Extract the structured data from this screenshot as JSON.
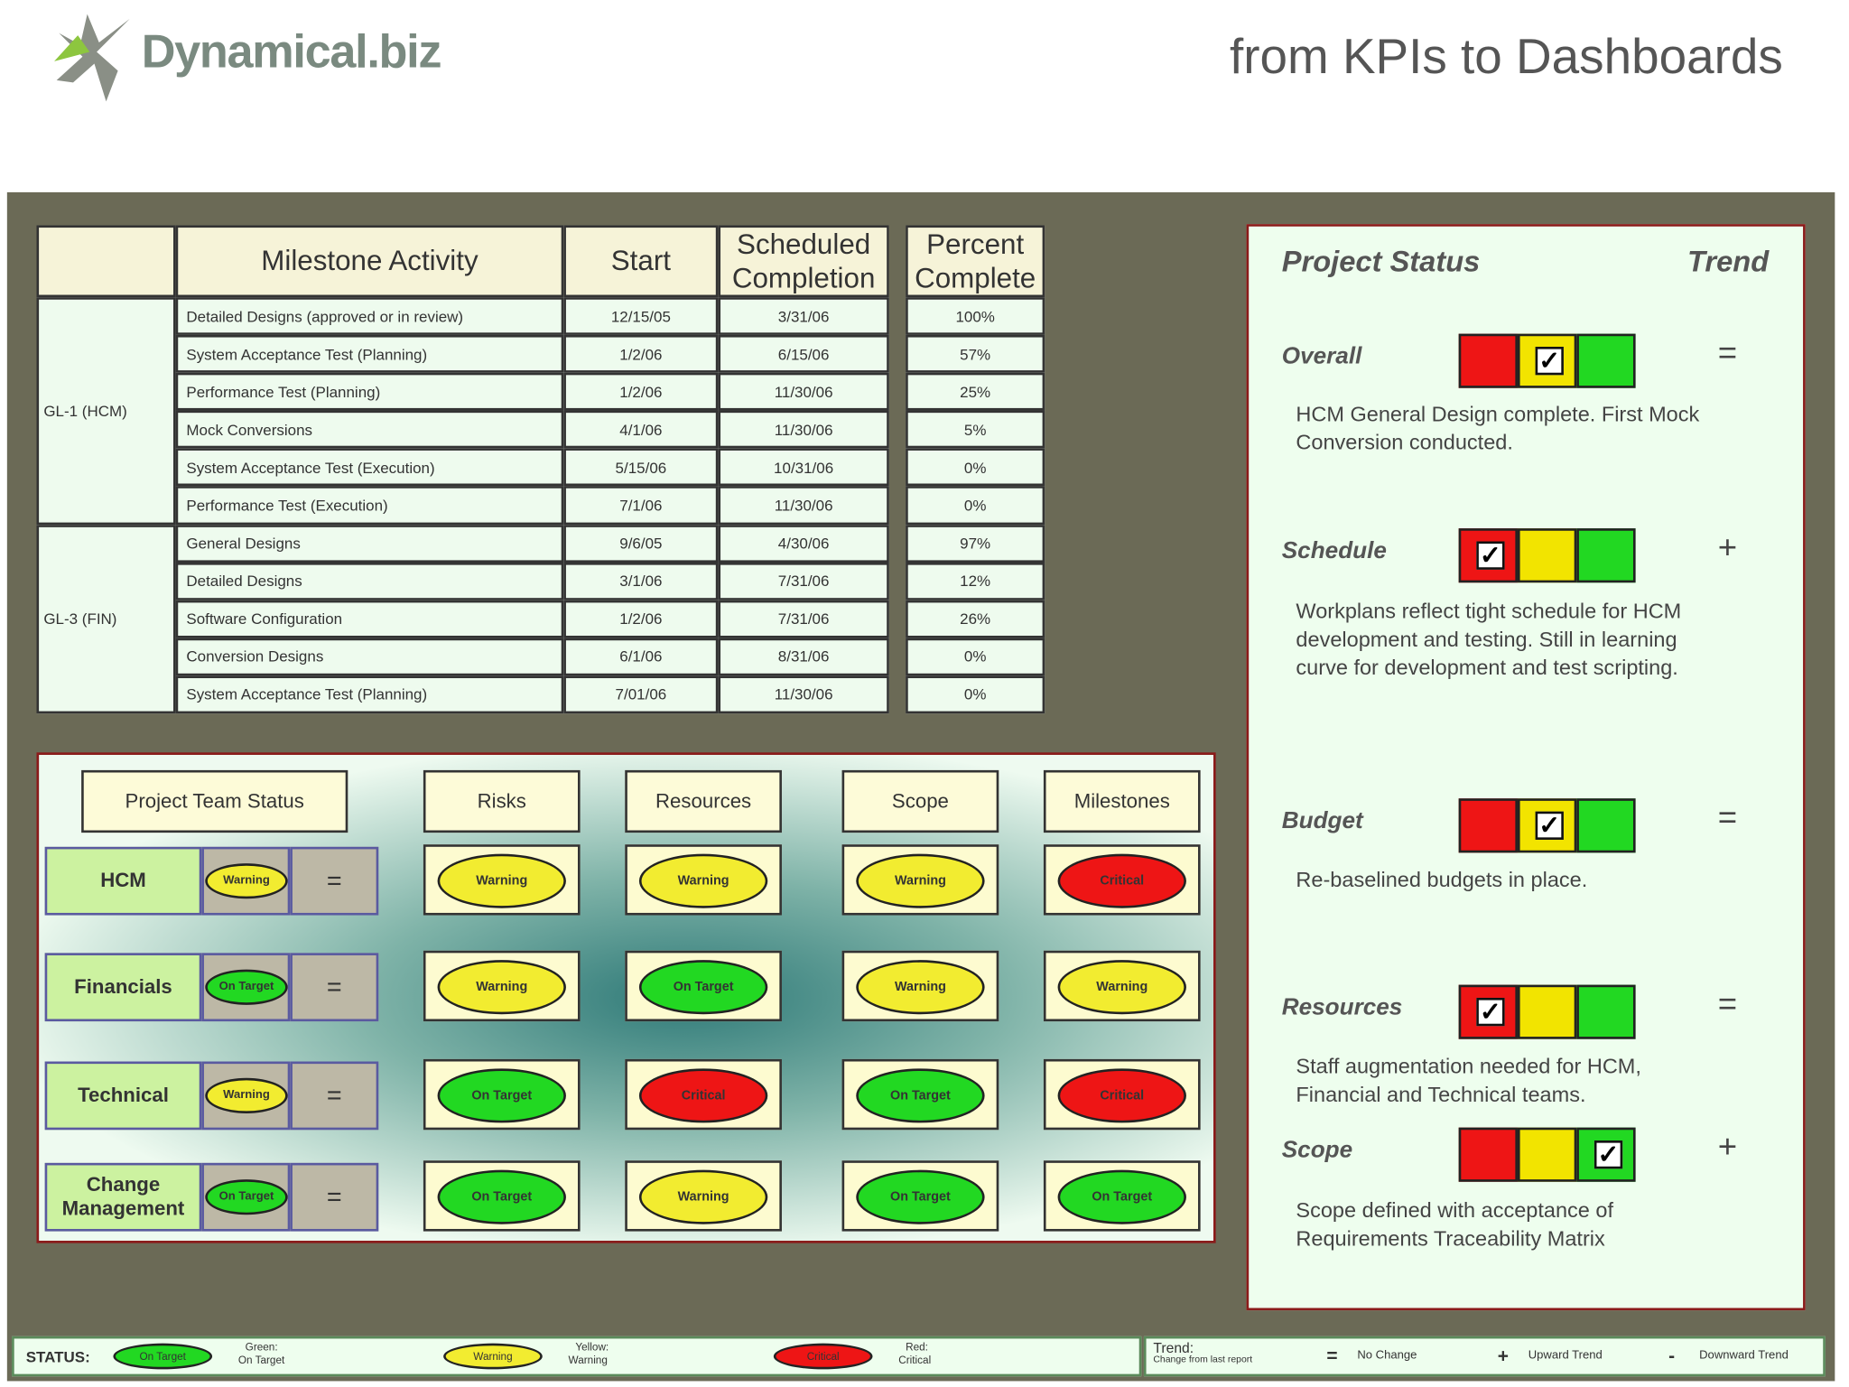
{
  "header": {
    "logo": "Dynamical.biz",
    "tagline": "from KPIs to Dashboards"
  },
  "milestones": {
    "headers": [
      "Milestone Activity",
      "Start",
      "Scheduled Completion",
      "Percent Complete"
    ],
    "groups": [
      {
        "label": "GL-1 (HCM)",
        "rows": [
          [
            "Detailed Designs (approved or in review)",
            "12/15/05",
            "3/31/06",
            "100%"
          ],
          [
            "System Acceptance Test (Planning)",
            "1/2/06",
            "6/15/06",
            "57%"
          ],
          [
            "Performance Test (Planning)",
            "1/2/06",
            "11/30/06",
            "25%"
          ],
          [
            "Mock Conversions",
            "4/1/06",
            "11/30/06",
            "5%"
          ],
          [
            "System Acceptance Test (Execution)",
            "5/15/06",
            "10/31/06",
            "0%"
          ],
          [
            "Performance Test (Execution)",
            "7/1/06",
            "11/30/06",
            "0%"
          ]
        ]
      },
      {
        "label": "GL-3 (FIN)",
        "rows": [
          [
            "General Designs",
            "9/6/05",
            "4/30/06",
            "97%"
          ],
          [
            "Detailed Designs",
            "3/1/06",
            "7/31/06",
            "12%"
          ],
          [
            "Software Configuration",
            "1/2/06",
            "7/31/06",
            "26%"
          ],
          [
            "Conversion Designs",
            "6/1/06",
            "8/31/06",
            "0%"
          ],
          [
            "System Acceptance Test (Planning)",
            "7/01/06",
            "11/30/06",
            "0%"
          ]
        ]
      }
    ]
  },
  "team_status": {
    "headers": [
      "Project Team Status",
      "Risks",
      "Resources",
      "Scope",
      "Milestones"
    ],
    "rows": [
      {
        "name": "HCM",
        "status": "Warning",
        "trend": "=",
        "cells": [
          "Warning",
          "Warning",
          "Warning",
          "Critical"
        ]
      },
      {
        "name": "Financials",
        "status": "On Target",
        "trend": "=",
        "cells": [
          "Warning",
          "On Target",
          "Warning",
          "Warning"
        ]
      },
      {
        "name": "Technical",
        "status": "Warning",
        "trend": "=",
        "cells": [
          "On Target",
          "Critical",
          "On Target",
          "Critical"
        ]
      },
      {
        "name": "Change Management",
        "status": "On Target",
        "trend": "=",
        "cells": [
          "On Target",
          "Warning",
          "On Target",
          "On Target"
        ]
      }
    ]
  },
  "status_panel": {
    "title": "Project Status",
    "trend_title": "Trend",
    "bar_colors": [
      "#ee1515",
      "#f2e400",
      "#22d822"
    ],
    "items": [
      {
        "name": "Overall",
        "checked": 1,
        "trend": "=",
        "text": [
          "HCM General Design complete.  First Mock",
          "Conversion conducted."
        ]
      },
      {
        "name": "Schedule",
        "checked": 0,
        "trend": "+",
        "text": [
          "Workplans reflect tight schedule for HCM",
          "development and testing.  Still in learning",
          "curve for development and test scripting."
        ]
      },
      {
        "name": "Budget",
        "checked": 1,
        "trend": "=",
        "text": [
          "Re-baselined budgets in place."
        ]
      },
      {
        "name": "Resources",
        "checked": 0,
        "trend": "=",
        "text": [
          "Staff augmentation needed for HCM,",
          "Financial and Technical teams."
        ]
      },
      {
        "name": "Scope",
        "checked": 2,
        "trend": "+",
        "text": [
          "Scope defined with acceptance of",
          "Requirements Traceability Matrix"
        ]
      }
    ]
  },
  "legend": {
    "status_label": "STATUS:",
    "items": [
      {
        "oval": "On Target",
        "color_name": "Green:",
        "label": "On Target",
        "color": "#22d822"
      },
      {
        "oval": "Warning",
        "color_name": "Yellow:",
        "label": "Warning",
        "color": "#f2ec30"
      },
      {
        "oval": "Critical",
        "color_name": "Red:",
        "label": "Critical",
        "color": "#ee1515"
      }
    ],
    "trend_label": "Trend:",
    "trend_sub": "Change from last report",
    "trend_items": [
      {
        "symbol": "=",
        "label": "No Change"
      },
      {
        "symbol": "+",
        "label": "Upward Trend"
      },
      {
        "symbol": "-",
        "label": "Downward Trend"
      }
    ]
  }
}
